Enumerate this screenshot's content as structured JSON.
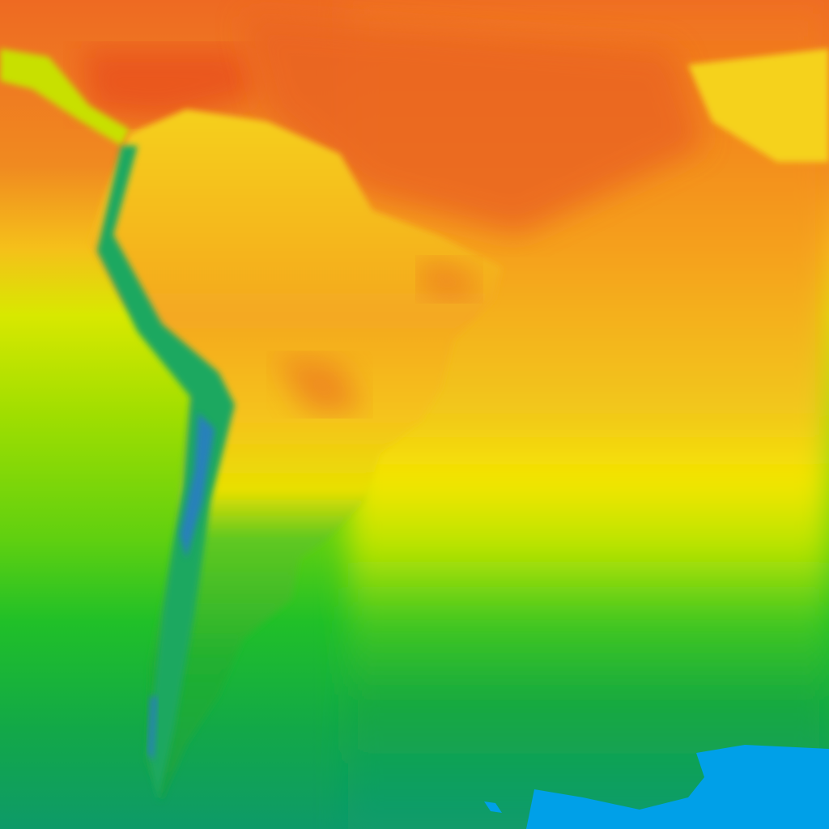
{
  "map": {
    "kind": "temperature-heatmap",
    "region": "South America",
    "palette": {
      "hot": "#e84a20",
      "warm": "#f07a20",
      "mild": "#f5b41e",
      "neutral": "#f5e600",
      "cool": "#a8e000",
      "cold": "#28c020",
      "colder": "#12a848",
      "coldest": "#0d9a70",
      "ice": "#00a0e8"
    }
  }
}
